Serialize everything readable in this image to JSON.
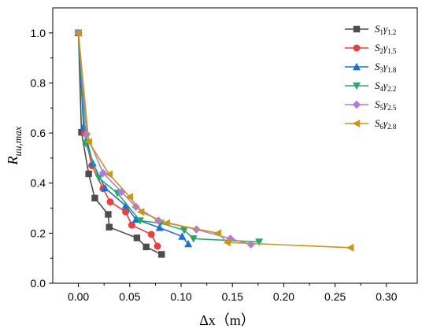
{
  "chart_data": {
    "type": "line",
    "xlabel": "Δx（m）",
    "ylabel": "R_uu,max",
    "xlim": [
      -0.025,
      0.33
    ],
    "ylim": [
      0.0,
      1.1
    ],
    "xticks": [
      0.0,
      0.05,
      0.1,
      0.15,
      0.2,
      0.25,
      0.3
    ],
    "xtick_labels": [
      "0.00",
      "0.05",
      "0.10",
      "0.15",
      "0.20",
      "0.25",
      "0.30"
    ],
    "yticks": [
      0.0,
      0.2,
      0.4,
      0.6,
      0.8,
      1.0
    ],
    "ytick_labels": [
      "0.0",
      "0.2",
      "0.4",
      "0.6",
      "0.8",
      "1.0"
    ],
    "grid": false,
    "legend_position": "top-right",
    "series": [
      {
        "name": "S1γ1.2",
        "label_main": "S",
        "label_sub1": "1",
        "label_greek": "γ",
        "label_sub2": "1.2",
        "color": "#4d4d4d",
        "marker": "square",
        "x": [
          0.0,
          0.003,
          0.01,
          0.016,
          0.029,
          0.03,
          0.057,
          0.066,
          0.081
        ],
        "y": [
          1.0,
          0.603,
          0.437,
          0.34,
          0.275,
          0.224,
          0.181,
          0.145,
          0.115
        ]
      },
      {
        "name": "S2γ1.5",
        "label_main": "S",
        "label_sub1": "2",
        "label_greek": "γ",
        "label_sub2": "1.5",
        "color": "#e8403f",
        "marker": "circle",
        "x": [
          0.0,
          0.006,
          0.013,
          0.024,
          0.031,
          0.046,
          0.052,
          0.071,
          0.077
        ],
        "y": [
          1.0,
          0.6,
          0.47,
          0.378,
          0.325,
          0.285,
          0.232,
          0.195,
          0.148
        ]
      },
      {
        "name": "S3γ1.8",
        "label_main": "S",
        "label_sub1": "3",
        "label_greek": "γ",
        "label_sub2": "1.8",
        "color": "#1f6fd1",
        "marker": "triangle-up",
        "x": [
          0.0,
          0.005,
          0.014,
          0.026,
          0.046,
          0.056,
          0.079,
          0.101,
          0.107
        ],
        "y": [
          1.0,
          0.625,
          0.48,
          0.38,
          0.31,
          0.255,
          0.222,
          0.187,
          0.157
        ]
      },
      {
        "name": "S4γ2.2",
        "label_main": "S",
        "label_sub1": "4",
        "label_greek": "γ",
        "label_sub2": "2.2",
        "color": "#26a86a",
        "marker": "triangle-down",
        "x": [
          0.0,
          0.007,
          0.02,
          0.038,
          0.06,
          0.08,
          0.103,
          0.112,
          0.176
        ],
        "y": [
          1.0,
          0.56,
          0.42,
          0.36,
          0.25,
          0.24,
          0.212,
          0.178,
          0.165
        ]
      },
      {
        "name": "S5γ2.5",
        "label_main": "S",
        "label_sub1": "5",
        "label_greek": "γ",
        "label_sub2": "2.5",
        "color": "#b27ae0",
        "marker": "diamond",
        "x": [
          0.0,
          0.008,
          0.024,
          0.042,
          0.056,
          0.078,
          0.115,
          0.148,
          0.168
        ],
        "y": [
          1.0,
          0.595,
          0.44,
          0.365,
          0.305,
          0.25,
          0.215,
          0.178,
          0.155
        ]
      },
      {
        "name": "S6γ2.8",
        "label_main": "S",
        "label_sub1": "6",
        "label_greek": "γ",
        "label_sub2": "2.8",
        "color": "#c9961a",
        "marker": "triangle-left",
        "x": [
          0.0,
          0.01,
          0.03,
          0.05,
          0.061,
          0.086,
          0.136,
          0.145,
          0.265
        ],
        "y": [
          1.0,
          0.565,
          0.435,
          0.345,
          0.285,
          0.24,
          0.2,
          0.163,
          0.142
        ]
      }
    ]
  }
}
